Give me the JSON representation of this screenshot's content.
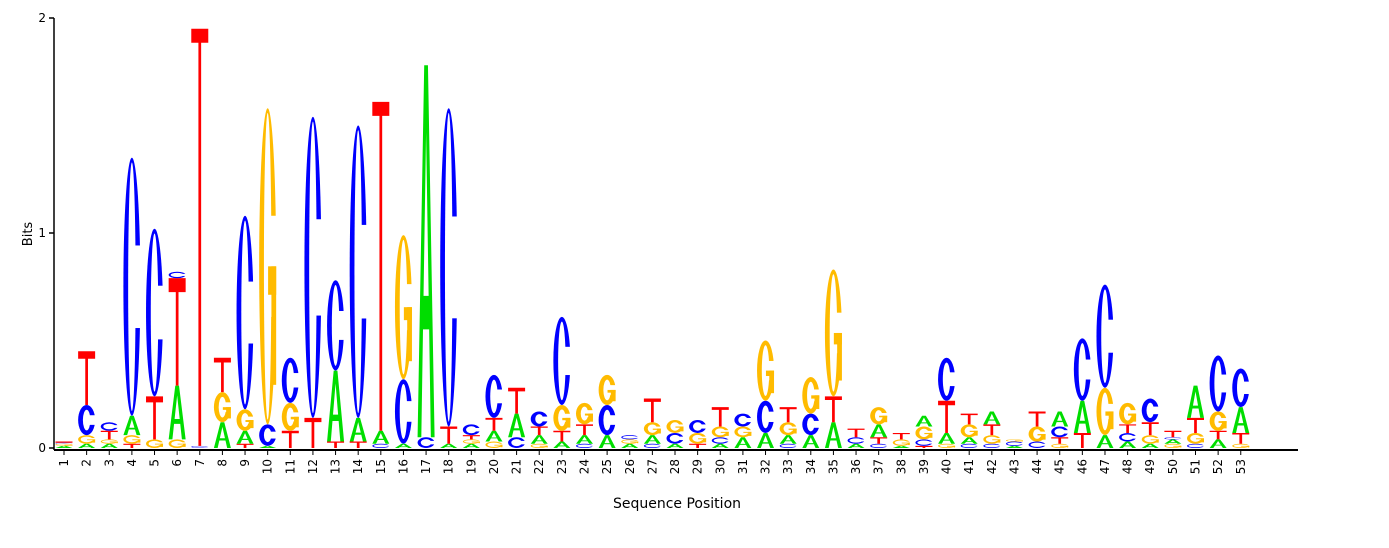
{
  "chart_data": {
    "type": "sequence-logo",
    "xlabel": "Sequence Position",
    "ylabel": "Bits",
    "ylim": [
      0,
      2
    ],
    "yticks": [
      "0",
      "1",
      "2"
    ],
    "grid": false,
    "colors": {
      "A": "#00dd00",
      "C": "#0000ff",
      "G": "#ffbb00",
      "T": "#ff0000"
    },
    "positions": [
      {
        "pos": "1",
        "stack": [
          [
            "A",
            0.01
          ],
          [
            "G",
            0.01
          ],
          [
            "C",
            0.005
          ],
          [
            "T",
            0.005
          ]
        ]
      },
      {
        "pos": "2",
        "stack": [
          [
            "A",
            0.02
          ],
          [
            "G",
            0.04
          ],
          [
            "C",
            0.14
          ],
          [
            "T",
            0.25
          ]
        ]
      },
      {
        "pos": "3",
        "stack": [
          [
            "A",
            0.02
          ],
          [
            "G",
            0.02
          ],
          [
            "T",
            0.04
          ],
          [
            "C",
            0.04
          ]
        ]
      },
      {
        "pos": "4",
        "stack": [
          [
            "T",
            0.02
          ],
          [
            "G",
            0.04
          ],
          [
            "A",
            0.09
          ],
          [
            "C",
            1.2
          ]
        ]
      },
      {
        "pos": "5",
        "stack": [
          [
            "G",
            0.04
          ],
          [
            "T",
            0.2
          ],
          [
            "C",
            0.78
          ]
        ]
      },
      {
        "pos": "6",
        "stack": [
          [
            "G",
            0.04
          ],
          [
            "A",
            0.25
          ],
          [
            "T",
            0.5
          ],
          [
            "C",
            0.03
          ]
        ]
      },
      {
        "pos": "7",
        "stack": [
          [
            "C",
            0.01
          ],
          [
            "T",
            1.94
          ]
        ]
      },
      {
        "pos": "8",
        "stack": [
          [
            "A",
            0.12
          ],
          [
            "G",
            0.14
          ],
          [
            "T",
            0.16
          ]
        ]
      },
      {
        "pos": "9",
        "stack": [
          [
            "T",
            0.02
          ],
          [
            "A",
            0.06
          ],
          [
            "G",
            0.1
          ],
          [
            "C",
            0.9
          ]
        ]
      },
      {
        "pos": "10",
        "stack": [
          [
            "A",
            0.01
          ],
          [
            "C",
            0.1
          ],
          [
            "G",
            1.47
          ]
        ]
      },
      {
        "pos": "11",
        "stack": [
          [
            "T",
            0.08
          ],
          [
            "G",
            0.13
          ],
          [
            "C",
            0.21
          ]
        ]
      },
      {
        "pos": "12",
        "stack": [
          [
            "T",
            0.14
          ],
          [
            "C",
            1.4
          ]
        ]
      },
      {
        "pos": "13",
        "stack": [
          [
            "T",
            0.03
          ],
          [
            "A",
            0.33
          ],
          [
            "C",
            0.42
          ]
        ]
      },
      {
        "pos": "14",
        "stack": [
          [
            "T",
            0.03
          ],
          [
            "A",
            0.11
          ],
          [
            "C",
            1.36
          ]
        ]
      },
      {
        "pos": "15",
        "stack": [
          [
            "C",
            0.02
          ],
          [
            "A",
            0.06
          ],
          [
            "T",
            1.53
          ]
        ]
      },
      {
        "pos": "16",
        "stack": [
          [
            "A",
            0.02
          ],
          [
            "C",
            0.3
          ],
          [
            "G",
            0.67
          ]
        ]
      },
      {
        "pos": "17",
        "stack": [
          [
            "C",
            0.05
          ],
          [
            "A",
            1.73
          ]
        ]
      },
      {
        "pos": "18",
        "stack": [
          [
            "A",
            0.02
          ],
          [
            "T",
            0.08
          ],
          [
            "C",
            1.48
          ]
        ]
      },
      {
        "pos": "19",
        "stack": [
          [
            "A",
            0.02
          ],
          [
            "G",
            0.02
          ],
          [
            "T",
            0.02
          ],
          [
            "C",
            0.05
          ]
        ]
      },
      {
        "pos": "20",
        "stack": [
          [
            "G",
            0.03
          ],
          [
            "A",
            0.05
          ],
          [
            "T",
            0.06
          ],
          [
            "C",
            0.2
          ]
        ]
      },
      {
        "pos": "21",
        "stack": [
          [
            "C",
            0.05
          ],
          [
            "A",
            0.11
          ],
          [
            "T",
            0.12
          ]
        ]
      },
      {
        "pos": "22",
        "stack": [
          [
            "G",
            0.02
          ],
          [
            "A",
            0.04
          ],
          [
            "T",
            0.04
          ],
          [
            "C",
            0.07
          ]
        ]
      },
      {
        "pos": "23",
        "stack": [
          [
            "A",
            0.03
          ],
          [
            "T",
            0.05
          ],
          [
            "G",
            0.12
          ],
          [
            "C",
            0.41
          ]
        ]
      },
      {
        "pos": "24",
        "stack": [
          [
            "C",
            0.02
          ],
          [
            "A",
            0.04
          ],
          [
            "T",
            0.05
          ],
          [
            "G",
            0.1
          ]
        ]
      },
      {
        "pos": "25",
        "stack": [
          [
            "A",
            0.06
          ],
          [
            "C",
            0.14
          ],
          [
            "G",
            0.14
          ]
        ]
      },
      {
        "pos": "26",
        "stack": [
          [
            "A",
            0.02
          ],
          [
            "G",
            0.02
          ],
          [
            "C",
            0.02
          ]
        ]
      },
      {
        "pos": "27",
        "stack": [
          [
            "C",
            0.02
          ],
          [
            "A",
            0.04
          ],
          [
            "G",
            0.06
          ],
          [
            "T",
            0.11
          ]
        ]
      },
      {
        "pos": "28",
        "stack": [
          [
            "A",
            0.02
          ],
          [
            "C",
            0.05
          ],
          [
            "G",
            0.06
          ]
        ]
      },
      {
        "pos": "29",
        "stack": [
          [
            "T",
            0.02
          ],
          [
            "G",
            0.05
          ],
          [
            "C",
            0.06
          ]
        ]
      },
      {
        "pos": "30",
        "stack": [
          [
            "A",
            0.02
          ],
          [
            "C",
            0.03
          ],
          [
            "G",
            0.05
          ],
          [
            "T",
            0.09
          ]
        ]
      },
      {
        "pos": "31",
        "stack": [
          [
            "A",
            0.05
          ],
          [
            "G",
            0.05
          ],
          [
            "C",
            0.06
          ]
        ]
      },
      {
        "pos": "32",
        "stack": [
          [
            "A",
            0.07
          ],
          [
            "C",
            0.15
          ],
          [
            "G",
            0.28
          ]
        ]
      },
      {
        "pos": "33",
        "stack": [
          [
            "C",
            0.02
          ],
          [
            "A",
            0.04
          ],
          [
            "G",
            0.06
          ],
          [
            "T",
            0.07
          ]
        ]
      },
      {
        "pos": "34",
        "stack": [
          [
            "A",
            0.06
          ],
          [
            "C",
            0.1
          ],
          [
            "G",
            0.17
          ]
        ]
      },
      {
        "pos": "35",
        "stack": [
          [
            "A",
            0.12
          ],
          [
            "T",
            0.12
          ],
          [
            "G",
            0.59
          ]
        ]
      },
      {
        "pos": "36",
        "stack": [
          [
            "A",
            0.02
          ],
          [
            "C",
            0.03
          ],
          [
            "T",
            0.04
          ]
        ]
      },
      {
        "pos": "37",
        "stack": [
          [
            "C",
            0.02
          ],
          [
            "T",
            0.03
          ],
          [
            "A",
            0.06
          ],
          [
            "G",
            0.08
          ]
        ]
      },
      {
        "pos": "38",
        "stack": [
          [
            "A",
            0.01
          ],
          [
            "G",
            0.03
          ],
          [
            "T",
            0.03
          ]
        ]
      },
      {
        "pos": "39",
        "stack": [
          [
            "T",
            0.01
          ],
          [
            "C",
            0.03
          ],
          [
            "G",
            0.06
          ],
          [
            "A",
            0.05
          ]
        ]
      },
      {
        "pos": "40",
        "stack": [
          [
            "G",
            0.02
          ],
          [
            "A",
            0.05
          ],
          [
            "T",
            0.15
          ],
          [
            "C",
            0.2
          ]
        ]
      },
      {
        "pos": "41",
        "stack": [
          [
            "C",
            0.02
          ],
          [
            "A",
            0.03
          ],
          [
            "G",
            0.06
          ],
          [
            "T",
            0.05
          ]
        ]
      },
      {
        "pos": "42",
        "stack": [
          [
            "C",
            0.02
          ],
          [
            "G",
            0.04
          ],
          [
            "T",
            0.05
          ],
          [
            "A",
            0.06
          ]
        ]
      },
      {
        "pos": "43",
        "stack": [
          [
            "A",
            0.01
          ],
          [
            "C",
            0.02
          ],
          [
            "G",
            0.01
          ]
        ]
      },
      {
        "pos": "44",
        "stack": [
          [
            "C",
            0.03
          ],
          [
            "G",
            0.07
          ],
          [
            "T",
            0.07
          ]
        ]
      },
      {
        "pos": "45",
        "stack": [
          [
            "G",
            0.02
          ],
          [
            "T",
            0.03
          ],
          [
            "C",
            0.05
          ],
          [
            "A",
            0.07
          ]
        ]
      },
      {
        "pos": "46",
        "stack": [
          [
            "T",
            0.07
          ],
          [
            "A",
            0.15
          ],
          [
            "C",
            0.29
          ]
        ]
      },
      {
        "pos": "47",
        "stack": [
          [
            "A",
            0.06
          ],
          [
            "G",
            0.22
          ],
          [
            "C",
            0.48
          ]
        ]
      },
      {
        "pos": "48",
        "stack": [
          [
            "A",
            0.03
          ],
          [
            "C",
            0.04
          ],
          [
            "T",
            0.04
          ],
          [
            "G",
            0.1
          ]
        ]
      },
      {
        "pos": "49",
        "stack": [
          [
            "A",
            0.02
          ],
          [
            "G",
            0.04
          ],
          [
            "T",
            0.06
          ],
          [
            "C",
            0.11
          ]
        ]
      },
      {
        "pos": "50",
        "stack": [
          [
            "G",
            0.02
          ],
          [
            "A",
            0.02
          ],
          [
            "C",
            0.01
          ],
          [
            "T",
            0.03
          ]
        ]
      },
      {
        "pos": "51",
        "stack": [
          [
            "C",
            0.02
          ],
          [
            "G",
            0.05
          ],
          [
            "T",
            0.07
          ],
          [
            "A",
            0.15
          ]
        ]
      },
      {
        "pos": "52",
        "stack": [
          [
            "A",
            0.04
          ],
          [
            "T",
            0.04
          ],
          [
            "G",
            0.09
          ],
          [
            "C",
            0.26
          ]
        ]
      },
      {
        "pos": "53",
        "stack": [
          [
            "G",
            0.02
          ],
          [
            "T",
            0.05
          ],
          [
            "A",
            0.12
          ],
          [
            "C",
            0.18
          ]
        ]
      }
    ]
  }
}
